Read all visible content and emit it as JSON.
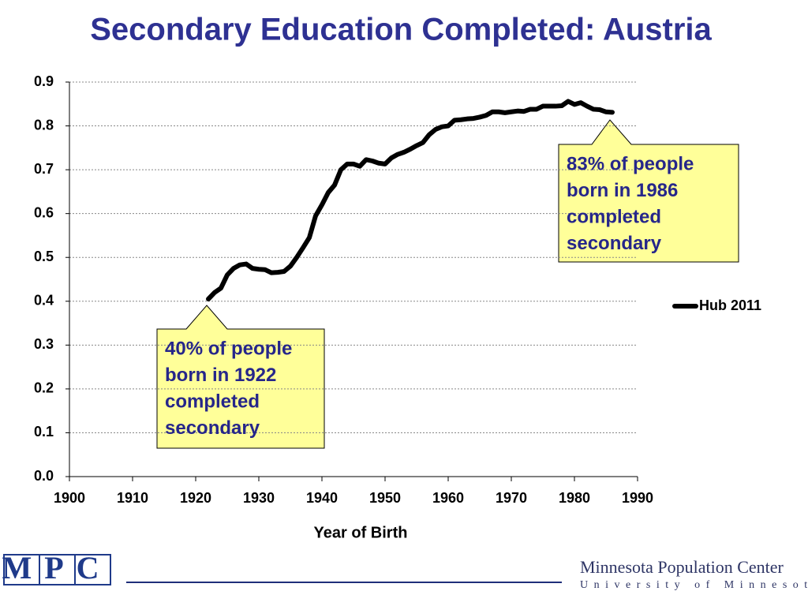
{
  "chart_data": {
    "type": "line",
    "title": "Secondary Education Completed: Austria",
    "x_label": "Year of Birth",
    "x": [
      1922,
      1923,
      1924,
      1925,
      1926,
      1927,
      1928,
      1929,
      1930,
      1931,
      1932,
      1933,
      1934,
      1935,
      1936,
      1937,
      1938,
      1939,
      1940,
      1941,
      1942,
      1943,
      1944,
      1945,
      1946,
      1947,
      1948,
      1949,
      1950,
      1951,
      1952,
      1953,
      1954,
      1955,
      1956,
      1957,
      1958,
      1959,
      1960,
      1961,
      1962,
      1963,
      1964,
      1965,
      1966,
      1967,
      1968,
      1969,
      1970,
      1971,
      1972,
      1973,
      1974,
      1975,
      1976,
      1977,
      1978,
      1979,
      1980,
      1981,
      1982,
      1983,
      1984,
      1985,
      1986
    ],
    "series": [
      {
        "name": "Hub 2011",
        "color": "#000000",
        "values": [
          0.405,
          0.42,
          0.43,
          0.46,
          0.475,
          0.483,
          0.485,
          0.475,
          0.473,
          0.472,
          0.465,
          0.466,
          0.468,
          0.48,
          0.5,
          0.522,
          0.545,
          0.595,
          0.62,
          0.648,
          0.665,
          0.7,
          0.713,
          0.713,
          0.708,
          0.723,
          0.72,
          0.715,
          0.713,
          0.727,
          0.735,
          0.74,
          0.747,
          0.755,
          0.762,
          0.78,
          0.792,
          0.798,
          0.8,
          0.813,
          0.814,
          0.816,
          0.817,
          0.82,
          0.824,
          0.832,
          0.832,
          0.83,
          0.832,
          0.834,
          0.833,
          0.838,
          0.838,
          0.845,
          0.845,
          0.845,
          0.846,
          0.856,
          0.849,
          0.853,
          0.845,
          0.838,
          0.837,
          0.832,
          0.831
        ]
      }
    ],
    "xlim": [
      1900,
      1990
    ],
    "xticks": [
      1900,
      1910,
      1920,
      1930,
      1940,
      1950,
      1960,
      1970,
      1980,
      1990
    ],
    "ylim": [
      0,
      0.9
    ],
    "yticks": [
      {
        "value": 0,
        "label": "0.0"
      },
      0.1,
      0.2,
      0.3,
      0.4,
      0.5,
      0.6,
      0.7,
      0.8,
      0.9
    ],
    "grid": true,
    "legend": "right",
    "annotations": [
      {
        "lines": [
          "40% of people",
          "born in 1922",
          "completed",
          "secondary"
        ]
      },
      {
        "lines": [
          "83% of people",
          "born in 1986",
          "completed",
          "secondary"
        ]
      }
    ]
  },
  "footer": {
    "logo": "MPC",
    "organization": "Minnesota Population Center",
    "university": "University of Minnesota"
  }
}
